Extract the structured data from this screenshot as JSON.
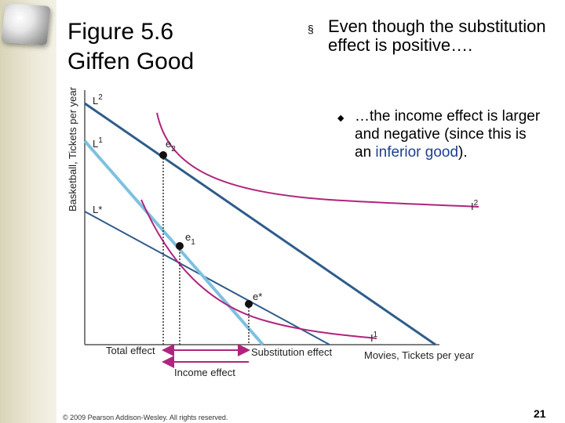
{
  "title": {
    "line1": "Figure 5.6",
    "line2": "Giffen Good"
  },
  "bullets": {
    "main": {
      "marker": "§",
      "text": "Even though the substitution effect is positive…."
    },
    "sub": {
      "marker": "◆",
      "text_before": "…the income effect is larger and negative (since this is an ",
      "highlight": "inferior good",
      "text_after": ")."
    }
  },
  "chart_data": {
    "type": "diagram",
    "title": "Giffen Good",
    "xlabel": "Movies, Tickets per year",
    "ylabel": "Basketball, Tickets per year",
    "budget_lines": [
      {
        "name": "L2"
      },
      {
        "name": "L1"
      },
      {
        "name": "L*"
      }
    ],
    "indifference_curves": [
      {
        "name": "I2",
        "label_base": "I",
        "label_sup": "2"
      },
      {
        "name": "I1",
        "label_base": "I",
        "label_sup": "1"
      }
    ],
    "points": [
      {
        "name": "e2",
        "label_base": "e",
        "label_sub": "2"
      },
      {
        "name": "e1",
        "label_base": "e",
        "label_sub": "1"
      },
      {
        "name": "e*",
        "label_base": "e*",
        "label_sub": ""
      }
    ],
    "effects": {
      "total": "Total effect",
      "substitution": "Substitution effect",
      "income": "Income effect"
    },
    "line_labels": {
      "L2": {
        "base": "L",
        "sup": "2"
      },
      "L1": {
        "base": "L",
        "sup": "1"
      },
      "Lstar": {
        "base": "L*"
      }
    },
    "colors": {
      "dark_line": "#2e5c8c",
      "light_line": "#7ec1e0",
      "curve": "#b0247e",
      "axis": "#555555",
      "arrow": "#b0247e",
      "point": "#111111"
    }
  },
  "footer": "© 2009 Pearson Addison-Wesley. All rights reserved.",
  "page_number": "21"
}
